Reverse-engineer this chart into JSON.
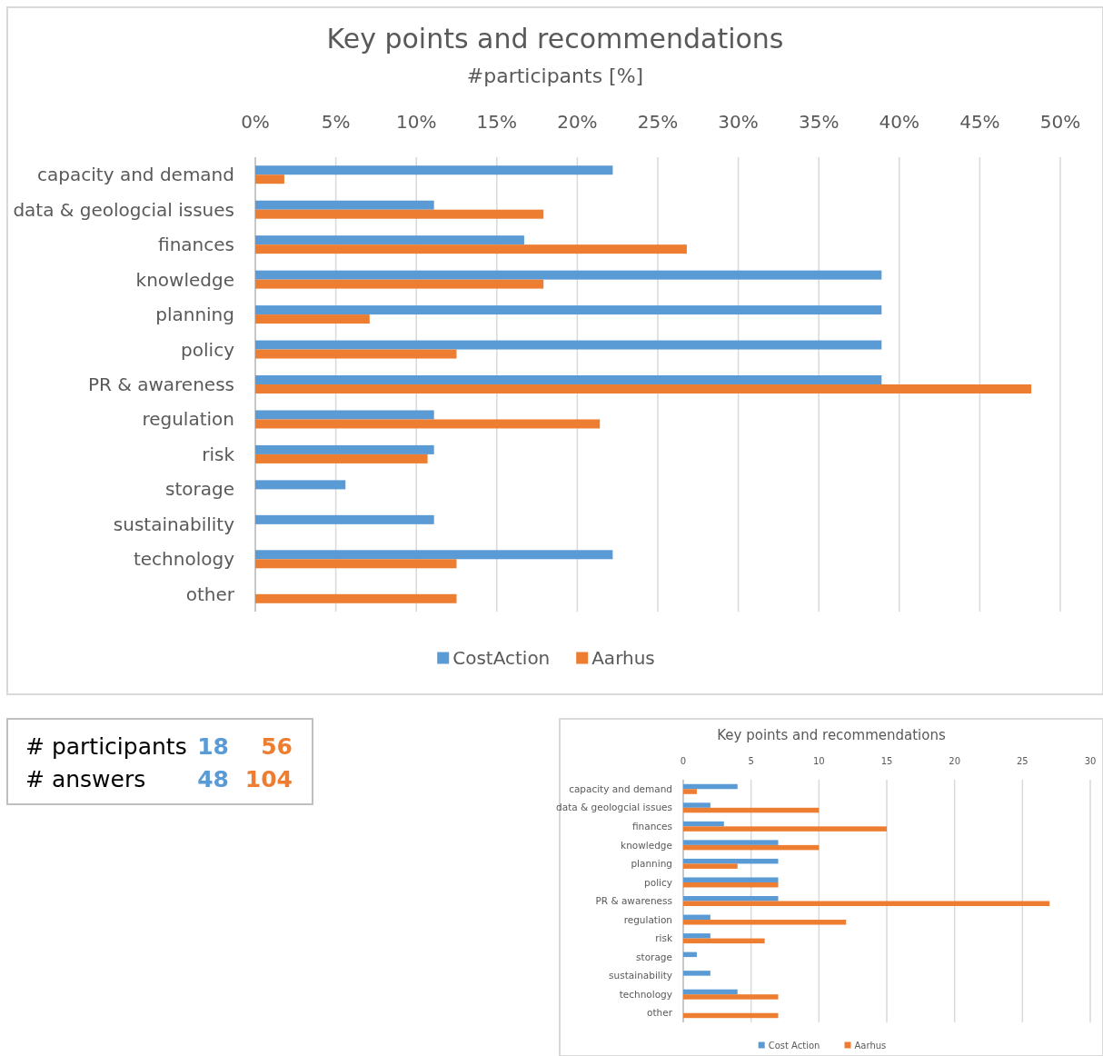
{
  "chart_data": [
    {
      "type": "bar",
      "orientation": "horizontal",
      "title": "Key points and recommendations",
      "subtitle": "#participants [%]",
      "categories": [
        "capacity and demand",
        "data & geologcial issues",
        "finances",
        "knowledge",
        "planning",
        "policy",
        "PR & awareness",
        "regulation",
        "risk",
        "storage",
        "sustainability",
        "technology",
        "other"
      ],
      "series": [
        {
          "name": "CostAction",
          "color": "#5b9bd5",
          "values": [
            22.2,
            11.1,
            16.7,
            38.9,
            38.9,
            38.9,
            38.9,
            11.1,
            11.1,
            5.6,
            11.1,
            22.2,
            0
          ]
        },
        {
          "name": "Aarhus",
          "color": "#ed7d31",
          "values": [
            1.8,
            17.9,
            26.8,
            17.9,
            7.1,
            12.5,
            48.2,
            21.4,
            10.7,
            0,
            0,
            12.5,
            12.5
          ]
        }
      ],
      "xlim": [
        0,
        50
      ],
      "xticks": [
        {
          "value": 0,
          "label": "0%"
        },
        {
          "value": 5,
          "label": "5%"
        },
        {
          "value": 10,
          "label": "10%"
        },
        {
          "value": 15,
          "label": "15%"
        },
        {
          "value": 20,
          "label": "20%"
        },
        {
          "value": 25,
          "label": "25%"
        },
        {
          "value": 30,
          "label": "30%"
        },
        {
          "value": 35,
          "label": "35%"
        },
        {
          "value": 40,
          "label": "40%"
        },
        {
          "value": 45,
          "label": "45%"
        },
        {
          "value": 50,
          "label": "50%"
        }
      ],
      "grid": "x",
      "legend": "bottom"
    },
    {
      "type": "other",
      "categories": [
        "# participants",
        "# answers"
      ],
      "series": [
        {
          "color": "#5b9bd5",
          "values": [
            18,
            48
          ]
        },
        {
          "color": "#ed7d31",
          "values": [
            56,
            104
          ]
        }
      ],
      "data_labels": true
    },
    {
      "type": "bar",
      "orientation": "horizontal",
      "title": "Key points and recommendations",
      "categories": [
        "capacity and demand",
        "data & geologcial issues",
        "finances",
        "knowledge",
        "planning",
        "policy",
        "PR & awareness",
        "regulation",
        "risk",
        "storage",
        "sustainability",
        "technology",
        "other"
      ],
      "series": [
        {
          "name": "Cost Action",
          "color": "#5b9bd5",
          "values": [
            4,
            2,
            3,
            7,
            7,
            7,
            7,
            2,
            2,
            1,
            2,
            4,
            0
          ]
        },
        {
          "name": "Aarhus",
          "color": "#ed7d31",
          "values": [
            1,
            10,
            15,
            10,
            4,
            7,
            27,
            12,
            6,
            0,
            0,
            7,
            7
          ]
        }
      ],
      "xlim": [
        0,
        30
      ],
      "xticks": [
        0,
        5,
        10,
        15,
        20,
        25,
        30
      ],
      "grid": "x",
      "legend": "bottom"
    }
  ]
}
